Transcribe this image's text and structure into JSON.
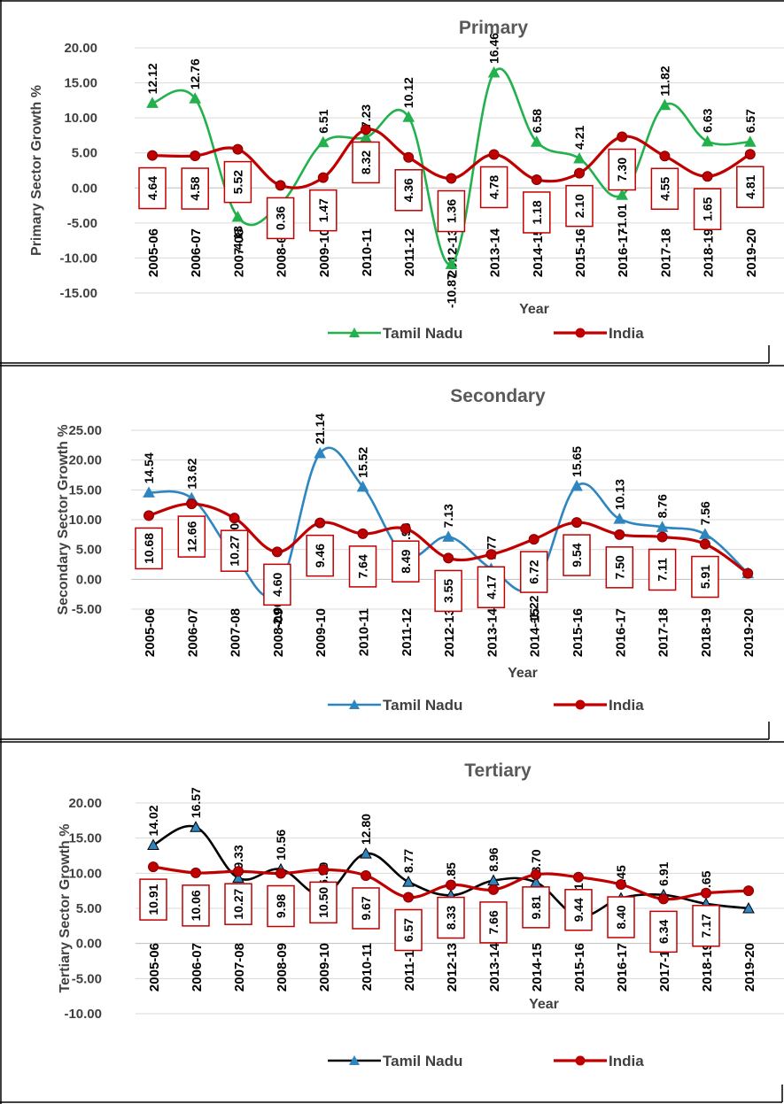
{
  "chart_data": [
    {
      "type": "line",
      "title": "Primary",
      "xlabel": "Year",
      "ylabel": "Primary Sector Growth %",
      "ylim": [
        -15,
        20
      ],
      "yticks": [
        "20.00",
        "15.00",
        "10.00",
        "5.00",
        "0.00",
        "-5.00",
        "-10.00",
        "-15.00"
      ],
      "categories": [
        "2005-06",
        "2006-07",
        "2007-08",
        "2008-09",
        "2009-10",
        "2010-11",
        "2011-12",
        "2012-13",
        "2013-14",
        "2014-15",
        "2015-16",
        "2016-17",
        "2017-18",
        "2018-19",
        "2019-20"
      ],
      "series": [
        {
          "name": "Tamil Nadu",
          "color": "#22b14c",
          "marker": "triangle",
          "values": [
            12.12,
            12.76,
            -4.13,
            -2.27,
            6.51,
            7.23,
            10.12,
            -10.87,
            16.46,
            6.58,
            4.21,
            -1.01,
            11.82,
            6.63,
            6.57
          ],
          "labels": [
            "12.12",
            "12.76",
            "-4.13",
            "-2.27",
            "6.51",
            "7.23",
            "10.12",
            "-10.87",
            "16.46",
            "6.58",
            "4.21",
            "-1.01",
            "11.82",
            "6.63",
            "6.57"
          ]
        },
        {
          "name": "India",
          "color": "#c00000",
          "marker": "circle",
          "values": [
            4.64,
            4.58,
            5.52,
            0.36,
            1.47,
            8.32,
            4.36,
            1.36,
            4.78,
            1.18,
            2.1,
            7.3,
            4.55,
            1.65,
            4.81
          ],
          "labels": [
            "4.64",
            "4.58",
            "5.52",
            "0.36",
            "1.47",
            "8.32",
            "4.36",
            "1.36",
            "4.78",
            "1.18",
            "2.10",
            "7.30",
            "4.55",
            "1.65",
            "4.81"
          ]
        }
      ],
      "grid": true,
      "legend": "bottom"
    },
    {
      "type": "line",
      "title": "Secondary",
      "xlabel": "Year",
      "ylabel": "Secondary Sector Growth %",
      "ylim": [
        -5,
        25
      ],
      "yticks": [
        "25.00",
        "20.00",
        "15.00",
        "10.00",
        "5.00",
        "0.00",
        "-5.00"
      ],
      "categories": [
        "2005-06",
        "2006-07",
        "2007-08",
        "2008-09",
        "2009-10",
        "2010-11",
        "2011-12",
        "2012-13",
        "2013-14",
        "2014-15",
        "2015-16",
        "2016-17",
        "2017-18",
        "2018-19",
        "2019-20"
      ],
      "series": [
        {
          "name": "Tamil Nadu",
          "color": "#2e86c1",
          "marker": "triangle",
          "values": [
            14.54,
            13.62,
            3.9,
            -2.06,
            21.14,
            15.52,
            3.96,
            7.13,
            1.77,
            -1.22,
            15.65,
            10.13,
            8.76,
            7.56,
            1.0
          ],
          "labels": [
            "14.54",
            "13.62",
            "3.90",
            "-2.06",
            "21.14",
            "15.52",
            "3.96",
            "7.13",
            "1.77",
            "-1.22",
            "15.65",
            "10.13",
            "8.76",
            "7.56",
            ""
          ]
        },
        {
          "name": "India",
          "color": "#c00000",
          "marker": "circle",
          "values": [
            10.68,
            12.66,
            10.27,
            4.6,
            9.46,
            7.64,
            8.49,
            3.55,
            4.17,
            6.72,
            9.54,
            7.5,
            7.11,
            5.91,
            1.0
          ],
          "labels": [
            "10.68",
            "12.66",
            "10.27",
            "4.60",
            "9.46",
            "7.64",
            "8.49",
            "3.55",
            "4.17",
            "6.72",
            "9.54",
            "7.50",
            "7.11",
            "5.91",
            ""
          ]
        }
      ],
      "grid": true,
      "legend": "bottom"
    },
    {
      "type": "line",
      "title": "Tertiary",
      "xlabel": "Year",
      "ylabel": "Tertiary Sector Growth %",
      "ylim": [
        -10,
        20
      ],
      "yticks": [
        "20.00",
        "15.00",
        "10.00",
        "5.00",
        "0.00",
        "-5.00",
        "-10.00"
      ],
      "categories": [
        "2005-06",
        "2006-07",
        "2007-08",
        "2008-09",
        "2009-10",
        "2010-11",
        "2011-12",
        "2012-13",
        "2013-14",
        "2014-15",
        "2015-16",
        "2016-17",
        "2017-18",
        "2018-19",
        "2019-20"
      ],
      "series": [
        {
          "name": "Tamil Nadu",
          "color": "#000000",
          "marker": "triangle",
          "values": [
            14.02,
            16.57,
            9.33,
            10.56,
            6.9,
            12.8,
            8.77,
            6.85,
            8.96,
            8.7,
            3.91,
            6.45,
            6.91,
            5.65,
            5.0
          ],
          "labels": [
            "14.02",
            "16.57",
            "9.33",
            "10.56",
            "6.90",
            "12.80",
            "8.77",
            "6.85",
            "8.96",
            "8.70",
            "3.91",
            "6.45",
            "6.91",
            "5.65",
            ""
          ]
        },
        {
          "name": "India",
          "color": "#c00000",
          "marker": "circle",
          "values": [
            10.91,
            10.06,
            10.27,
            9.98,
            10.5,
            9.67,
            6.57,
            8.33,
            7.66,
            9.81,
            9.44,
            8.4,
            6.34,
            7.17,
            7.5
          ],
          "labels": [
            "10.91",
            "10.06",
            "10.27",
            "9.98",
            "10.50",
            "9.67",
            "6.57",
            "8.33",
            "7.66",
            "9.81",
            "9.44",
            "8.40",
            "6.34",
            "7.17",
            ""
          ]
        }
      ],
      "grid": true,
      "legend": "bottom"
    }
  ]
}
